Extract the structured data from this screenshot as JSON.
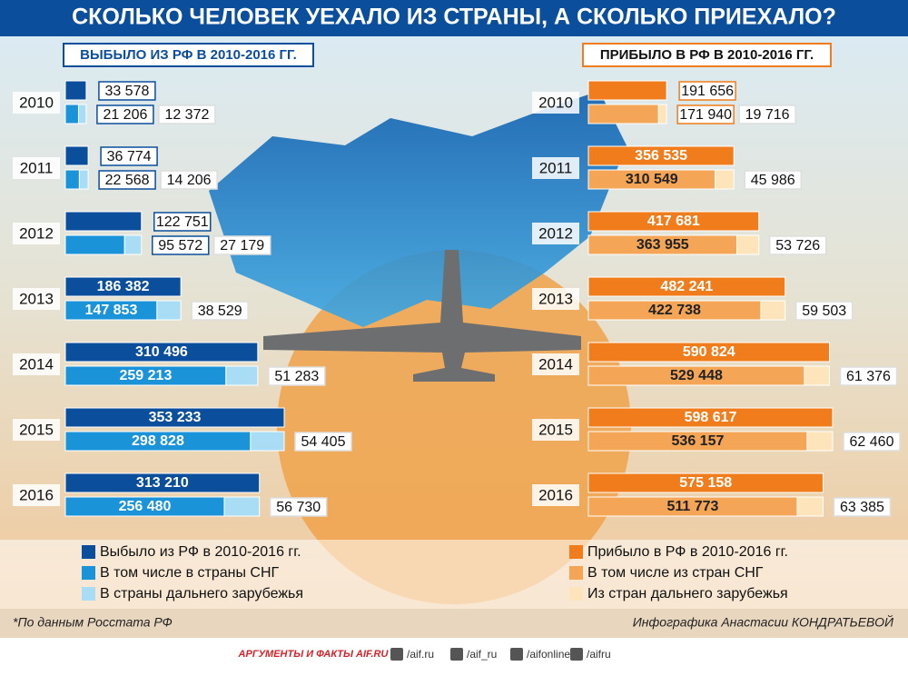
{
  "title": "СКОЛЬКО ЧЕЛОВЕК УЕХАЛО ИЗ СТРАНЫ, А СКОЛЬКО ПРИЕХАЛО?",
  "chart_data": [
    {
      "type": "bar",
      "title": "ВЫБЫЛО ИЗ РФ В 2010-2016 ГГ.",
      "categories": [
        "2010",
        "2011",
        "2012",
        "2013",
        "2014",
        "2015",
        "2016"
      ],
      "series": [
        {
          "name": "Выбыло из РФ в 2010-2016 гг.",
          "color": "#0b4e9b",
          "values": [
            33578,
            36774,
            122751,
            186382,
            310496,
            353233,
            313210
          ],
          "value_labels": [
            "33 578",
            "36 774",
            "122 751",
            "186 382",
            "310 496",
            "353 233",
            "313 210"
          ]
        },
        {
          "name": "В том числе в страны СНГ",
          "color": "#1b93d8",
          "values": [
            21206,
            22568,
            95572,
            147853,
            259213,
            298828,
            256480
          ],
          "value_labels": [
            "21 206",
            "22 568",
            "95 572",
            "147 853",
            "259 213",
            "298 828",
            "256 480"
          ]
        },
        {
          "name": "В страны дальнего зарубежья",
          "color": "#a9ddf6",
          "values": [
            12372,
            14206,
            27179,
            38529,
            51283,
            54405,
            56730
          ],
          "value_labels": [
            "12 372",
            "14 206",
            "27 179",
            "38 529",
            "51 283",
            "54 405",
            "56 730"
          ]
        }
      ]
    },
    {
      "type": "bar",
      "title": "ПРИБЫЛО В РФ В 2010-2016 ГГ.",
      "categories": [
        "2010",
        "2011",
        "2012",
        "2013",
        "2014",
        "2015",
        "2016"
      ],
      "series": [
        {
          "name": "Прибыло в РФ в 2010-2016 гг.",
          "color": "#f07c1b",
          "values": [
            191656,
            356535,
            417681,
            482241,
            590824,
            598617,
            575158
          ],
          "value_labels": [
            "191 656",
            "356 535",
            "417 681",
            "482 241",
            "590 824",
            "598 617",
            "575 158"
          ]
        },
        {
          "name": "В том числе из стран СНГ",
          "color": "#f4a556",
          "values": [
            171940,
            310549,
            363955,
            422738,
            529448,
            536157,
            511773
          ],
          "value_labels": [
            "171 940",
            "310 549",
            "363 955",
            "422 738",
            "529 448",
            "536 157",
            "511 773"
          ]
        },
        {
          "name": "Из стран дальнего зарубежья",
          "color": "#fde4ba",
          "values": [
            19716,
            45986,
            53726,
            59503,
            61376,
            62460,
            63385
          ],
          "value_labels": [
            "19 716",
            "45 986",
            "53 726",
            "59 503",
            "61 376",
            "62 460",
            "63 385"
          ]
        }
      ]
    }
  ],
  "source": "*По данным Росстата РФ",
  "credit": "Инфографика Анастасии КОНДРАТЬЕВОЙ",
  "logo": "АРГУМЕНТЫ И ФАКТЫ AIF.RU",
  "social": [
    "/aif.ru",
    "/aif_ru",
    "/aifonline",
    "/aifru"
  ]
}
